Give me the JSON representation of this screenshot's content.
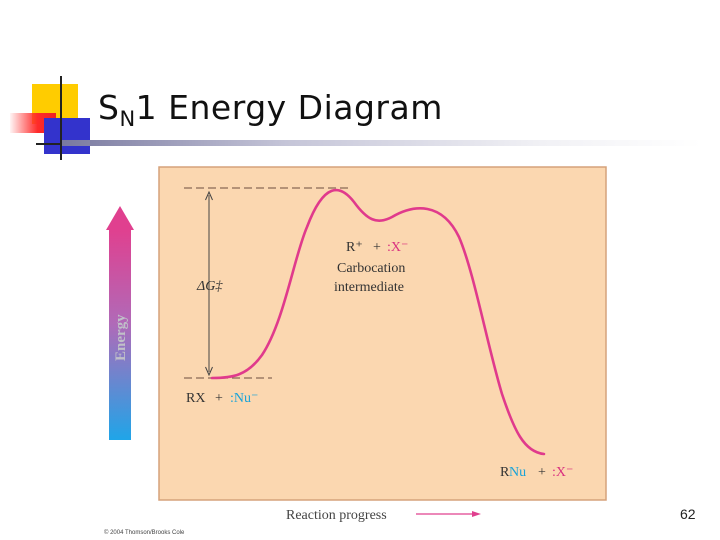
{
  "slide": {
    "title_main": "S",
    "title_sub": "N",
    "title_rest": "1 Energy Diagram",
    "page_number": "62",
    "copyright": "© 2004 Thomson/Brooks Cole"
  },
  "diagram": {
    "y_axis_label": "Energy",
    "x_axis_label": "Reaction progress",
    "delta_g_label": "ΔG‡",
    "reactant_rx": "RX",
    "reactant_plus": "+",
    "reactant_nu": ":Nu⁻",
    "intermediate_r": "R⁺",
    "intermediate_plus": "+",
    "intermediate_x": ":X⁻",
    "intermediate_name_line1": "Carbocation",
    "intermediate_name_line2": "intermediate",
    "product_r": "R",
    "product_nu": "Nu",
    "product_plus": "+",
    "product_x": ":X⁻"
  },
  "colors": {
    "panel": "#fbd7b0",
    "curve": "#e03a8c",
    "arrow_top": "#e0408f",
    "arrow_bottom": "#1fa5e8",
    "nu_cyan": "#1aa3d8",
    "x_pink": "#d9327f",
    "axis_arrow": "#e0408f"
  }
}
